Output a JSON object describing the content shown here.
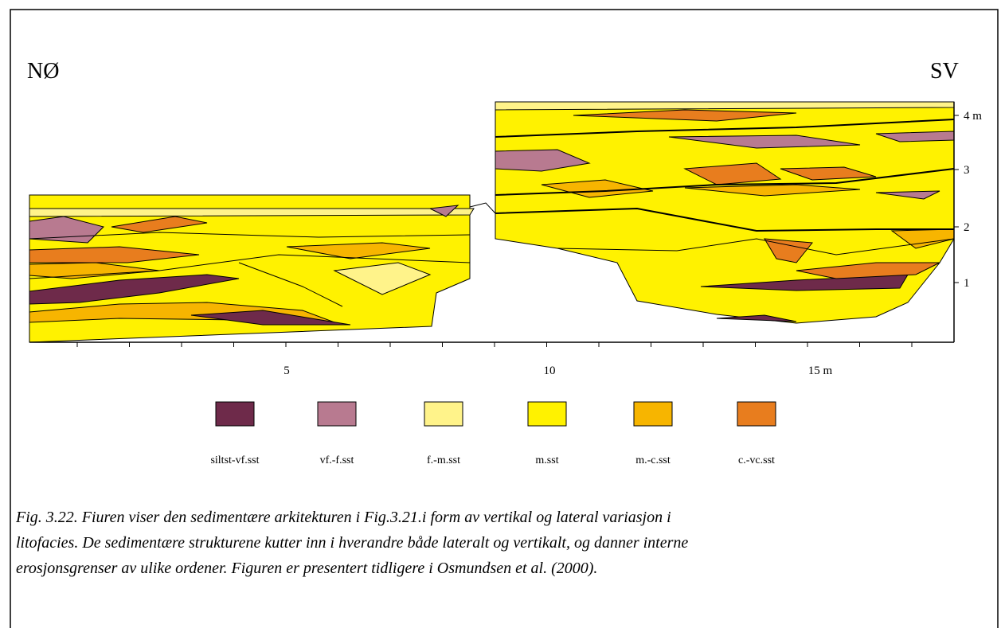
{
  "figure": {
    "direction_left": "NØ",
    "direction_right": "SV",
    "vertical_scale": [
      "1",
      "2",
      "3",
      "4 m"
    ],
    "horizontal_scale": [
      "5",
      "10",
      "15 m"
    ],
    "legend": [
      {
        "label": "siltst-vf.sst",
        "color": "#6e2a4a"
      },
      {
        "label": "vf.-f.sst",
        "color": "#b87a90"
      },
      {
        "label": "f.-m.sst",
        "color": "#fff38a"
      },
      {
        "label": "m.sst",
        "color": "#fff200"
      },
      {
        "label": "m.-c.sst",
        "color": "#f7b500"
      },
      {
        "label": "c.-vc.sst",
        "color": "#e87d1e"
      }
    ],
    "caption": [
      "Fig. 3.22. Fiuren viser den sedimentære arkitekturen i Fig.3.21.i form av vertikal og lateral variasjon i",
      "litofacies.  De sedimentære strukturene kutter inn i hverandre både lateralt og vertikalt, og danner interne",
      "erosjonsgrenser av ulike ordener. Figuren er presentert tidligere i Osmundsen et al. (2000)."
    ]
  }
}
